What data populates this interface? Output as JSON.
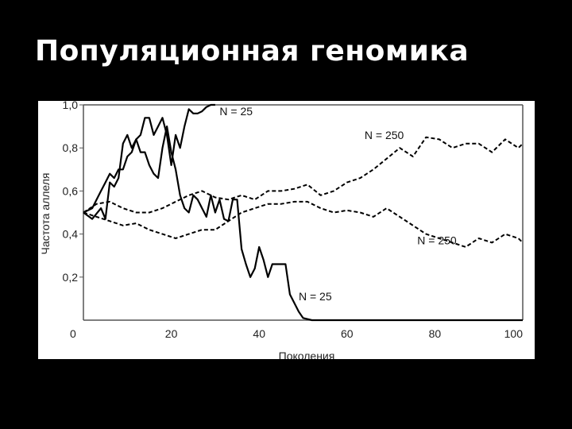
{
  "slide": {
    "title": "Популяционная геномика"
  },
  "chart_data": {
    "type": "line",
    "title": "",
    "xlabel": "Поколения",
    "ylabel": "Частота аллеля",
    "xlim": [
      0,
      100
    ],
    "ylim": [
      0,
      1
    ],
    "x_ticks": [
      "0",
      "20",
      "40",
      "60",
      "80",
      "100"
    ],
    "y_ticks": [
      "0,2",
      "0,4",
      "0,6",
      "0,8",
      "1,0"
    ],
    "grid": false,
    "colors": {
      "line": "#000000",
      "axis": "#555555",
      "background": "#ffffff"
    },
    "series": [
      {
        "name": "N = 25",
        "style": "solid",
        "x": [
          0,
          2,
          4,
          5,
          6,
          7,
          8,
          9,
          10,
          11,
          12,
          13,
          14,
          15,
          16,
          17,
          18,
          19,
          20,
          21,
          22,
          23,
          24,
          25,
          26,
          27,
          28,
          29,
          30
        ],
        "y": [
          0.5,
          0.52,
          0.6,
          0.64,
          0.68,
          0.66,
          0.7,
          0.7,
          0.76,
          0.78,
          0.84,
          0.86,
          0.94,
          0.94,
          0.86,
          0.9,
          0.94,
          0.86,
          0.72,
          0.86,
          0.8,
          0.9,
          0.98,
          0.96,
          0.96,
          0.97,
          0.99,
          1.0,
          1.0
        ]
      },
      {
        "name": "N = 25",
        "style": "solid",
        "x": [
          0,
          2,
          4,
          5,
          6,
          7,
          8,
          9,
          10,
          11,
          12,
          13,
          14,
          15,
          16,
          17,
          18,
          19,
          20,
          21,
          22,
          23,
          24,
          25,
          26,
          27,
          28,
          29,
          30,
          31,
          32,
          33,
          34,
          35,
          36,
          37,
          38,
          39,
          40,
          41,
          42,
          43,
          44,
          45,
          46,
          47,
          48,
          49,
          50,
          52,
          60,
          80,
          100
        ],
        "y": [
          0.5,
          0.47,
          0.52,
          0.47,
          0.64,
          0.62,
          0.66,
          0.82,
          0.86,
          0.8,
          0.84,
          0.78,
          0.78,
          0.72,
          0.68,
          0.66,
          0.8,
          0.9,
          0.78,
          0.7,
          0.58,
          0.52,
          0.5,
          0.58,
          0.56,
          0.52,
          0.48,
          0.58,
          0.5,
          0.56,
          0.47,
          0.46,
          0.56,
          0.56,
          0.33,
          0.26,
          0.2,
          0.24,
          0.34,
          0.28,
          0.2,
          0.26,
          0.26,
          0.26,
          0.26,
          0.12,
          0.08,
          0.04,
          0.01,
          0.0,
          0.0,
          0.0,
          0.0
        ]
      },
      {
        "name": "N = 250",
        "style": "dashed",
        "x": [
          0,
          3,
          6,
          9,
          12,
          15,
          18,
          21,
          24,
          27,
          30,
          33,
          36,
          39,
          42,
          45,
          48,
          51,
          54,
          57,
          60,
          63,
          66,
          69,
          72,
          75,
          78,
          81,
          84,
          87,
          90,
          93,
          96,
          99,
          100
        ],
        "y": [
          0.5,
          0.54,
          0.55,
          0.52,
          0.5,
          0.5,
          0.52,
          0.55,
          0.58,
          0.6,
          0.57,
          0.56,
          0.58,
          0.56,
          0.6,
          0.6,
          0.61,
          0.63,
          0.58,
          0.6,
          0.64,
          0.66,
          0.7,
          0.75,
          0.8,
          0.76,
          0.85,
          0.84,
          0.8,
          0.82,
          0.82,
          0.78,
          0.84,
          0.8,
          0.82
        ]
      },
      {
        "name": "N = 250",
        "style": "dashed",
        "x": [
          0,
          3,
          6,
          9,
          12,
          15,
          18,
          21,
          24,
          27,
          30,
          33,
          36,
          39,
          42,
          45,
          48,
          51,
          54,
          57,
          60,
          63,
          66,
          69,
          72,
          75,
          78,
          81,
          84,
          87,
          90,
          93,
          96,
          99,
          100
        ],
        "y": [
          0.5,
          0.48,
          0.46,
          0.44,
          0.45,
          0.42,
          0.4,
          0.38,
          0.4,
          0.42,
          0.42,
          0.46,
          0.5,
          0.52,
          0.54,
          0.54,
          0.55,
          0.55,
          0.52,
          0.5,
          0.51,
          0.5,
          0.48,
          0.52,
          0.48,
          0.44,
          0.4,
          0.38,
          0.36,
          0.34,
          0.38,
          0.36,
          0.4,
          0.38,
          0.36
        ]
      }
    ],
    "annotations": [
      {
        "text": "N = 25",
        "x": 31,
        "y": 0.97
      },
      {
        "text": "N = 250",
        "x": 64,
        "y": 0.86
      },
      {
        "text": "N = 250",
        "x": 76,
        "y": 0.37
      },
      {
        "text": "N = 25",
        "x": 49,
        "y": 0.11
      }
    ]
  }
}
